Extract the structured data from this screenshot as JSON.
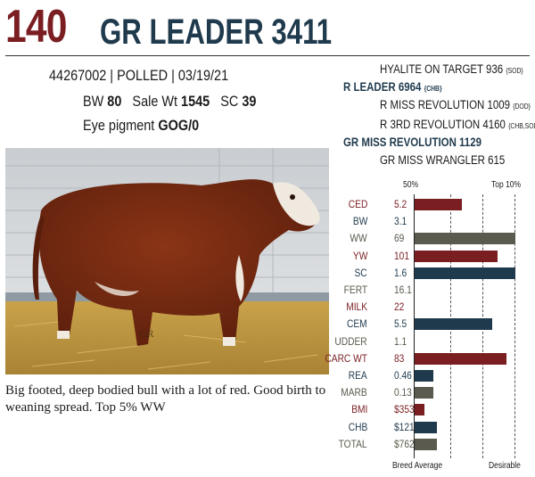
{
  "lot_number": "140",
  "animal_name": "GR LEADER 3411",
  "registration_line": "44267002 | POLLED | 03/19/21",
  "stats": {
    "bw_label": "BW",
    "bw_value": "80",
    "salewt_label": "Sale Wt",
    "salewt_value": "1545",
    "sc_label": "SC",
    "sc_value": "39"
  },
  "eye_pigment": {
    "label": "Eye pigment",
    "value": "GOG/0"
  },
  "pedigree": {
    "sire_sire": {
      "name": "HYALITE ON TARGET 936",
      "tag": "{SOD}"
    },
    "sire": {
      "name": "R LEADER 6964",
      "tag": "{CHB}"
    },
    "sire_dam": {
      "name": "R MISS REVOLUTION 1009",
      "tag": "{DOD}"
    },
    "dam_sire": {
      "name": "R 3RD REVOLUTION 4160",
      "tag": "{CHB,SOD}"
    },
    "dam": {
      "name": "GR MISS REVOLUTION 1129",
      "tag": ""
    },
    "dam_dam": {
      "name": "GR MISS WRANGLER 615",
      "tag": ""
    }
  },
  "photo_watermark": "GR",
  "description": "Big footed, deep bodied bull with a lot of red. Good birth to weaning spread. Top 5% WW",
  "epd_scale": {
    "top_left": "50%",
    "top_right": "Top 10%",
    "bottom_left": "Breed Average",
    "bottom_right": "Desirable"
  },
  "colors": {
    "red": "#7a1e22",
    "navy": "#1f3a4d",
    "olive": "#5a5a4e"
  },
  "epds": [
    {
      "label": "CED",
      "value": "5.2",
      "bar": 0.47,
      "color": "#7a1e22",
      "label_color": "#7a1e22"
    },
    {
      "label": "BW",
      "value": "3.1",
      "bar": 0,
      "color": "",
      "label_color": "#1f3a4d"
    },
    {
      "label": "WW",
      "value": "69",
      "bar": 1.0,
      "color": "#5a5a4e",
      "label_color": "#5a5a4e"
    },
    {
      "label": "YW",
      "value": "101",
      "bar": 0.82,
      "color": "#7a1e22",
      "label_color": "#7a1e22"
    },
    {
      "label": "SC",
      "value": "1.6",
      "bar": 1.0,
      "color": "#1f3a4d",
      "label_color": "#1f3a4d"
    },
    {
      "label": "FERT",
      "value": "16.1",
      "bar": 0,
      "color": "",
      "label_color": "#5a5a4e"
    },
    {
      "label": "MILK",
      "value": "22",
      "bar": 0,
      "color": "",
      "label_color": "#7a1e22"
    },
    {
      "label": "CEM",
      "value": "5.5",
      "bar": 0.77,
      "color": "#1f3a4d",
      "label_color": "#1f3a4d"
    },
    {
      "label": "UDDER",
      "value": "1.1",
      "bar": 0,
      "color": "",
      "label_color": "#5a5a4e"
    },
    {
      "label": "CARC WT",
      "value": "83",
      "bar": 0.91,
      "color": "#7a1e22",
      "label_color": "#7a1e22"
    },
    {
      "label": "REA",
      "value": "0.46",
      "bar": 0.19,
      "color": "#1f3a4d",
      "label_color": "#1f3a4d"
    },
    {
      "label": "MARB",
      "value": "0.13",
      "bar": 0.19,
      "color": "#5a5a4e",
      "label_color": "#5a5a4e"
    },
    {
      "label": "BMI",
      "value": "$353",
      "bar": 0.1,
      "color": "#7a1e22",
      "label_color": "#7a1e22"
    },
    {
      "label": "CHB",
      "value": "$121",
      "bar": 0.22,
      "color": "#1f3a4d",
      "label_color": "#1f3a4d"
    },
    {
      "label": "TOTAL",
      "value": "$762",
      "bar": 0.22,
      "color": "#5a5a4e",
      "label_color": "#5a5a4e"
    }
  ]
}
